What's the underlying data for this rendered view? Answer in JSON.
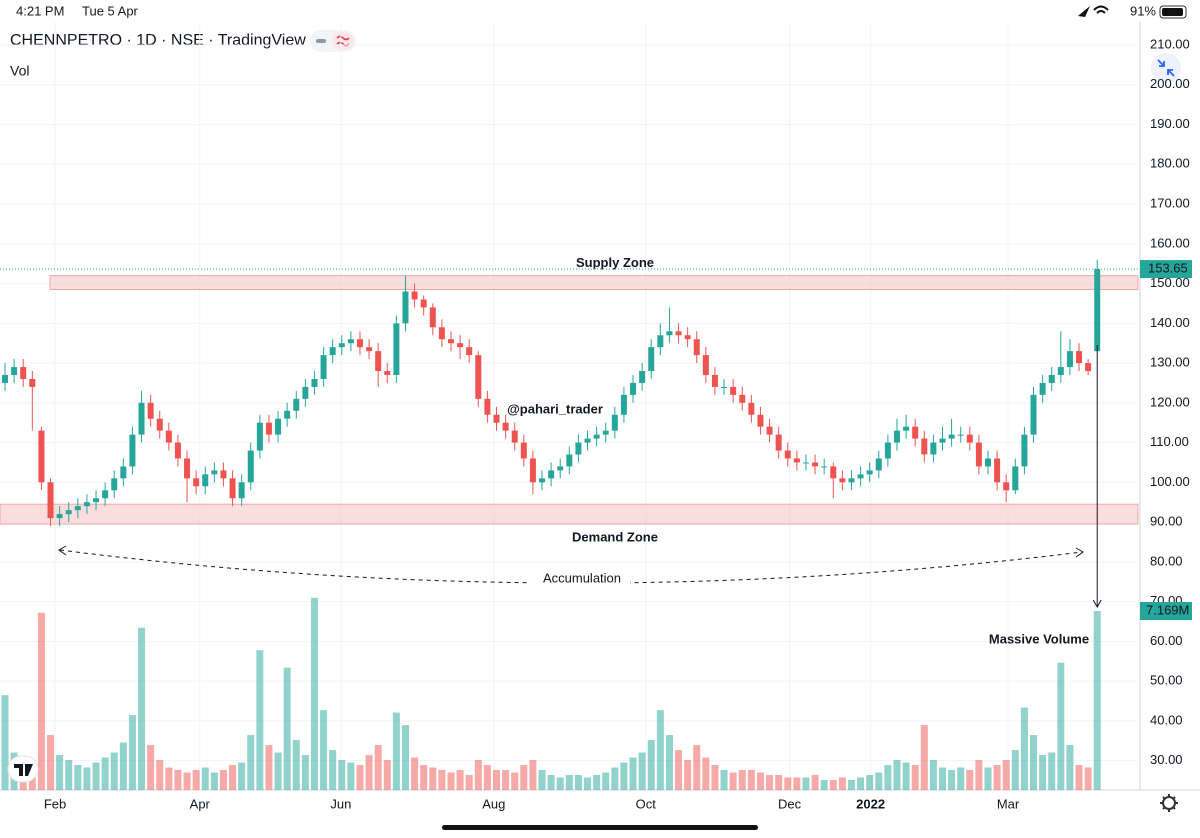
{
  "status_bar": {
    "time": "4:21 PM",
    "date": "Tue 5 Apr",
    "battery": "91%"
  },
  "chart_data": {
    "type": "candlestick",
    "title": "CHENNPETRO · 1D · NSE · TradingView",
    "indicator": "Vol",
    "up_color": "#26a69a",
    "down_color": "#ef5350",
    "grid": true,
    "open": [
      125,
      127,
      129,
      126,
      113,
      100,
      91,
      92,
      93,
      94,
      95,
      96,
      98,
      101,
      104,
      112,
      120,
      116,
      113,
      110,
      106,
      101,
      99,
      102,
      103,
      101,
      96,
      100,
      108,
      115,
      112,
      116,
      118,
      121,
      124,
      126,
      132,
      134,
      135,
      136,
      134,
      133,
      128,
      127,
      140,
      148,
      146,
      144,
      139,
      136,
      135,
      134,
      132,
      121,
      117,
      115,
      113,
      110,
      106,
      100,
      101,
      103,
      104,
      107,
      110,
      111,
      112,
      113,
      117,
      122,
      125,
      128,
      134,
      137,
      138,
      137,
      136,
      132,
      127,
      124,
      124,
      122,
      120,
      117,
      114,
      112,
      108,
      106,
      105,
      105,
      104,
      104,
      101,
      100,
      101,
      102,
      103,
      106,
      110,
      113,
      114,
      111,
      107,
      110,
      111,
      112,
      112,
      110,
      104,
      106,
      100,
      98,
      104,
      112,
      122,
      125,
      127,
      129,
      133,
      130,
      133
    ],
    "high": [
      130,
      131,
      131,
      128,
      114,
      101,
      94,
      95,
      96,
      97,
      98,
      100,
      103,
      106,
      114,
      123,
      122,
      118,
      115,
      112,
      108,
      103,
      104,
      105,
      105,
      103,
      102,
      110,
      117,
      117,
      118,
      120,
      123,
      126,
      128,
      134,
      136,
      137,
      138,
      138,
      136,
      135,
      130,
      142,
      152,
      150,
      147,
      145,
      141,
      138,
      137,
      136,
      133,
      123,
      119,
      117,
      115,
      112,
      108,
      103,
      105,
      106,
      109,
      112,
      113,
      114,
      115,
      119,
      124,
      127,
      130,
      136,
      140,
      144,
      140,
      139,
      138,
      134,
      129,
      126,
      126,
      124,
      122,
      119,
      116,
      114,
      110,
      108,
      107,
      107,
      106,
      105,
      103,
      103,
      104,
      105,
      108,
      112,
      116,
      117,
      116,
      113,
      112,
      114,
      116,
      114,
      114,
      112,
      108,
      108,
      102,
      106,
      114,
      124,
      127,
      129,
      138,
      136,
      135,
      131,
      156
    ],
    "low": [
      123,
      125,
      124,
      113,
      98,
      89,
      89,
      90,
      91,
      92,
      93,
      94,
      96,
      99,
      102,
      110,
      114,
      111,
      108,
      104,
      95,
      97,
      97,
      100,
      99,
      94,
      94,
      98,
      106,
      110,
      110,
      114,
      116,
      119,
      122,
      124,
      130,
      132,
      133,
      132,
      131,
      124,
      125,
      125,
      138,
      144,
      142,
      137,
      134,
      133,
      131,
      130,
      119,
      115,
      113,
      111,
      108,
      104,
      97,
      98,
      99,
      101,
      102,
      105,
      108,
      109,
      110,
      111,
      115,
      120,
      123,
      126,
      132,
      135,
      135,
      134,
      130,
      125,
      122,
      122,
      120,
      118,
      115,
      112,
      110,
      106,
      104,
      103,
      103,
      102,
      102,
      96,
      98,
      98,
      99,
      100,
      101,
      104,
      108,
      111,
      109,
      105,
      105,
      108,
      109,
      110,
      108,
      102,
      102,
      98,
      95,
      97,
      102,
      110,
      120,
      123,
      125,
      127,
      128,
      127,
      133
    ],
    "close": [
      127,
      129,
      126,
      124,
      100,
      91,
      92,
      93,
      94,
      95,
      96,
      98,
      101,
      104,
      112,
      120,
      116,
      113,
      110,
      106,
      101,
      99,
      102,
      103,
      101,
      96,
      100,
      108,
      115,
      112,
      116,
      118,
      121,
      124,
      126,
      132,
      134,
      135,
      136,
      134,
      133,
      128,
      127,
      140,
      148,
      146,
      144,
      139,
      136,
      135,
      134,
      132,
      121,
      117,
      115,
      113,
      110,
      106,
      100,
      101,
      103,
      104,
      107,
      110,
      111,
      112,
      113,
      117,
      122,
      125,
      128,
      134,
      137,
      138,
      137,
      136,
      132,
      127,
      124,
      124,
      122,
      120,
      117,
      114,
      112,
      108,
      106,
      105,
      105,
      104,
      104,
      101,
      100,
      101,
      102,
      103,
      106,
      110,
      113,
      114,
      111,
      107,
      110,
      111,
      112,
      112,
      110,
      104,
      106,
      100,
      98,
      104,
      112,
      122,
      125,
      127,
      129,
      133,
      130,
      128,
      153.65
    ],
    "volume": [
      3.8,
      1.5,
      1.2,
      1.0,
      7.1,
      2.2,
      1.4,
      1.2,
      1.0,
      0.9,
      1.1,
      1.3,
      1.5,
      1.9,
      3.0,
      6.5,
      1.8,
      1.2,
      0.9,
      0.8,
      0.7,
      0.8,
      0.9,
      0.7,
      0.8,
      1.0,
      1.1,
      2.2,
      5.6,
      1.8,
      1.5,
      4.9,
      2.0,
      1.4,
      7.7,
      3.2,
      1.6,
      1.2,
      1.1,
      1.0,
      1.4,
      1.8,
      1.2,
      3.1,
      2.6,
      1.3,
      1.0,
      0.9,
      0.8,
      0.7,
      0.8,
      0.6,
      1.2,
      1.0,
      0.8,
      0.8,
      0.7,
      1.0,
      1.2,
      0.8,
      0.6,
      0.5,
      0.6,
      0.6,
      0.5,
      0.6,
      0.7,
      0.9,
      1.1,
      1.3,
      1.5,
      2.0,
      3.2,
      2.2,
      1.6,
      1.2,
      1.8,
      1.3,
      1.0,
      0.8,
      0.7,
      0.8,
      0.8,
      0.7,
      0.6,
      0.6,
      0.5,
      0.5,
      0.5,
      0.6,
      0.4,
      0.4,
      0.5,
      0.4,
      0.5,
      0.6,
      0.7,
      1.0,
      1.2,
      1.1,
      1.0,
      2.6,
      1.2,
      0.9,
      0.8,
      0.9,
      0.8,
      1.2,
      0.9,
      1.0,
      1.2,
      1.6,
      3.3,
      2.2,
      1.4,
      1.5,
      5.1,
      1.8,
      1.0,
      0.9,
      7.169
    ],
    "last_volume_label": "7.169M",
    "xlim": [
      -0.55,
      124.7
    ],
    "xticks": [
      {
        "value": 5.5,
        "label": "Feb"
      },
      {
        "value": 21.4,
        "label": "Apr"
      },
      {
        "value": 36.9,
        "label": "Jun"
      },
      {
        "value": 53.7,
        "label": "Aug"
      },
      {
        "value": 70.4,
        "label": "Oct"
      },
      {
        "value": 86.2,
        "label": "Dec"
      },
      {
        "value": 95.1,
        "label": "2022"
      },
      {
        "value": 110.2,
        "label": "Mar"
      }
    ],
    "ylim": [
      22.6,
      215.8
    ],
    "yticks": [
      {
        "value": 30,
        "label": "30.00"
      },
      {
        "value": 40,
        "label": "40.00"
      },
      {
        "value": 50,
        "label": "50.00"
      },
      {
        "value": 60,
        "label": "60.00"
      },
      {
        "value": 70,
        "label": "70.00"
      },
      {
        "value": 80,
        "label": "80.00"
      },
      {
        "value": 90,
        "label": "90.00"
      },
      {
        "value": 100,
        "label": "100.00"
      },
      {
        "value": 110,
        "label": "110.00"
      },
      {
        "value": 120,
        "label": "120.00"
      },
      {
        "value": 130,
        "label": "130.00"
      },
      {
        "value": 140,
        "label": "140.00"
      },
      {
        "value": 150,
        "label": "150.00"
      },
      {
        "value": 160,
        "label": "160.00"
      },
      {
        "value": 170,
        "label": "170.00"
      },
      {
        "value": 180,
        "label": "180.00"
      },
      {
        "value": 190,
        "label": "190.00"
      },
      {
        "value": 200,
        "label": "200.00"
      },
      {
        "value": 210,
        "label": "210.00"
      }
    ],
    "y2lim": [
      0,
      30.76
    ],
    "zones": [
      {
        "label": "Supply Zone",
        "range": [
          148.5,
          152
        ],
        "color": "#e0424e"
      },
      {
        "label": "Demand Zone",
        "range": [
          89.5,
          94.5
        ],
        "color": "#26997a"
      }
    ],
    "annotations": {
      "watermark": "@pahari_trader",
      "accumulation": "Accumulation",
      "volume_note": "Massive Volume"
    }
  }
}
